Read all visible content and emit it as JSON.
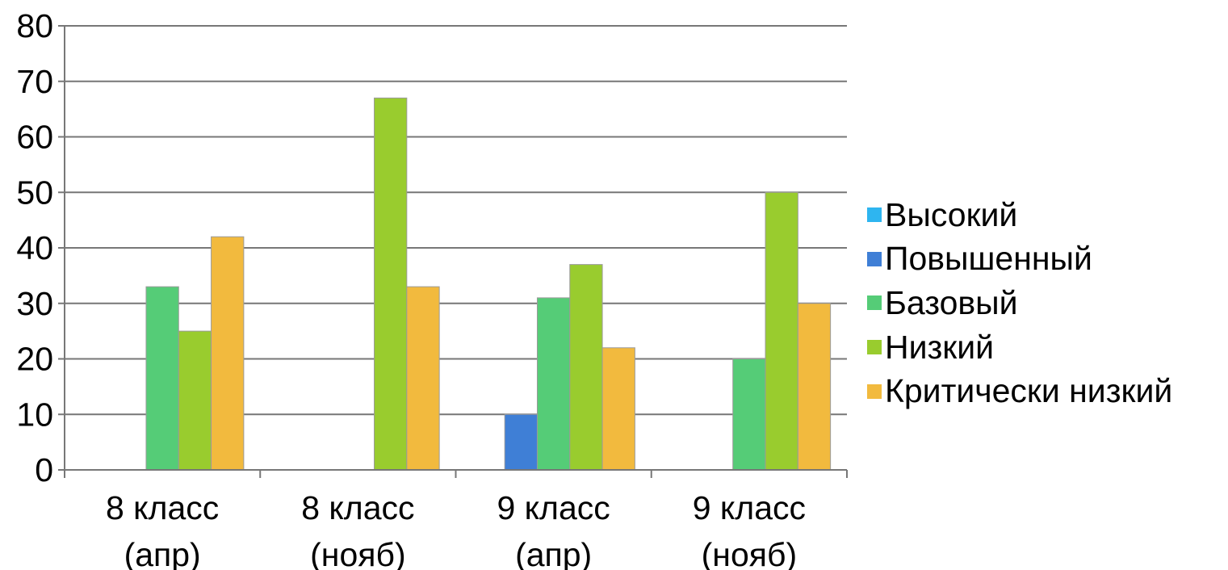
{
  "chart_data": {
    "type": "bar",
    "title": "",
    "xlabel": "",
    "ylabel": "",
    "ylim": [
      0,
      80
    ],
    "y_ticks": [
      "0",
      "10",
      "20",
      "30",
      "40",
      "50",
      "60",
      "70",
      "80"
    ],
    "grid": true,
    "legend_position": "right",
    "categories": [
      [
        "8 класс",
        "(апр)"
      ],
      [
        "8 класс",
        "(нояб)"
      ],
      [
        "9 класс",
        "(апр)"
      ],
      [
        "9 класс",
        "(нояб)"
      ]
    ],
    "series": [
      {
        "name": "Высокий",
        "color": "#2EB5F0",
        "values": [
          0,
          0,
          0,
          0
        ]
      },
      {
        "name": "Повышенный",
        "color": "#3F7FD6",
        "values": [
          0,
          0,
          10,
          0
        ]
      },
      {
        "name": "Базовый",
        "color": "#55CC77",
        "values": [
          33,
          0,
          31,
          20
        ]
      },
      {
        "name": "Низкий",
        "color": "#99CC2E",
        "values": [
          25,
          67,
          37,
          50
        ]
      },
      {
        "name": "Критически низкий",
        "color": "#F2BA3E",
        "values": [
          42,
          33,
          22,
          30
        ]
      }
    ]
  }
}
